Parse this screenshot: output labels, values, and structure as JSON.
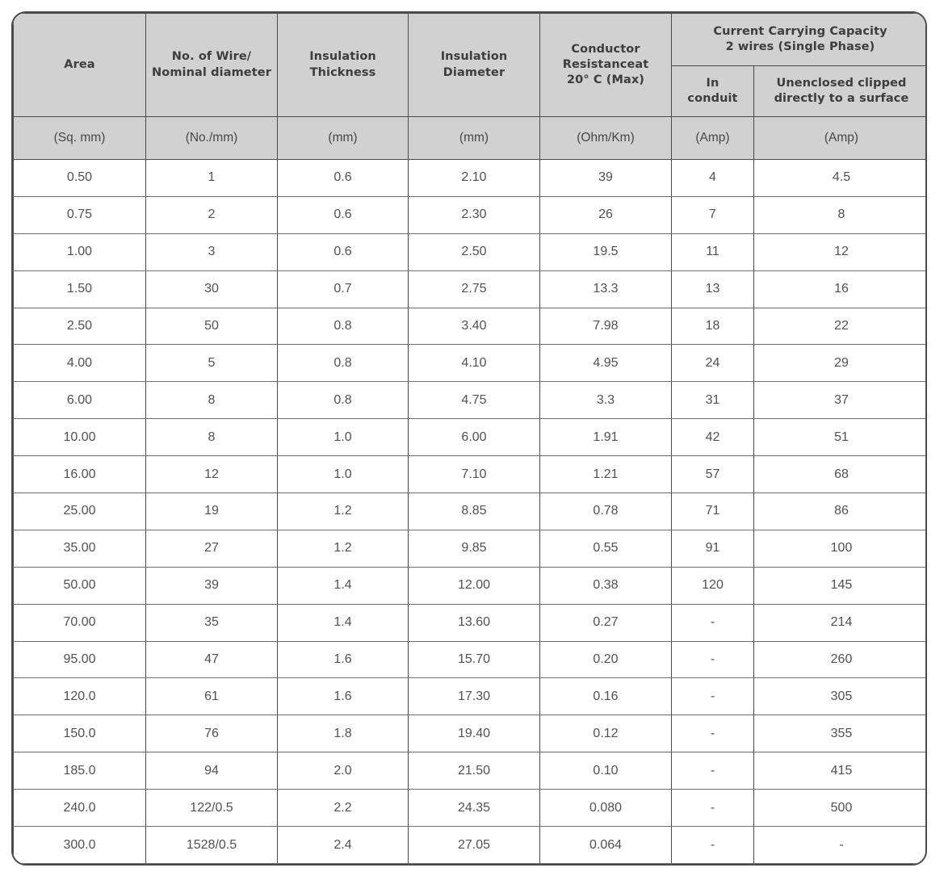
{
  "table": {
    "group_header": "Current Carrying Capacity\n2 wires (Single Phase)",
    "columns": [
      {
        "key": "area",
        "label": "Area",
        "unit": "(Sq. mm)"
      },
      {
        "key": "wires",
        "label": "No. of Wire/\nNominal diameter",
        "unit": "(No./mm)"
      },
      {
        "key": "insulation-thickness",
        "label": "Insulation\nThickness",
        "unit": "(mm)"
      },
      {
        "key": "insulation-diameter",
        "label": "Insulation\nDiameter",
        "unit": "(mm)"
      },
      {
        "key": "resistance",
        "label": "Conductor\nResistanceat\n20° C (Max)",
        "unit": "(Ohm/Km)"
      },
      {
        "key": "in-conduit",
        "label": "In\nconduit",
        "unit": "(Amp)"
      },
      {
        "key": "unenclosed",
        "label": "Unenclosed clipped\ndirectly to a surface",
        "unit": "(Amp)"
      }
    ],
    "rows": [
      [
        "0.50",
        "1",
        "0.6",
        "2.10",
        "39",
        "4",
        "4.5"
      ],
      [
        "0.75",
        "2",
        "0.6",
        "2.30",
        "26",
        "7",
        "8"
      ],
      [
        "1.00",
        "3",
        "0.6",
        "2.50",
        "19.5",
        "11",
        "12"
      ],
      [
        "1.50",
        "30",
        "0.7",
        "2.75",
        "13.3",
        "13",
        "16"
      ],
      [
        "2.50",
        "50",
        "0.8",
        "3.40",
        "7.98",
        "18",
        "22"
      ],
      [
        "4.00",
        "5",
        "0.8",
        "4.10",
        "4.95",
        "24",
        "29"
      ],
      [
        "6.00",
        "8",
        "0.8",
        "4.75",
        "3.3",
        "31",
        "37"
      ],
      [
        "10.00",
        "8",
        "1.0",
        "6.00",
        "1.91",
        "42",
        "51"
      ],
      [
        "16.00",
        "12",
        "1.0",
        "7.10",
        "1.21",
        "57",
        "68"
      ],
      [
        "25.00",
        "19",
        "1.2",
        "8.85",
        "0.78",
        "71",
        "86"
      ],
      [
        "35.00",
        "27",
        "1.2",
        "9.85",
        "0.55",
        "91",
        "100"
      ],
      [
        "50.00",
        "39",
        "1.4",
        "12.00",
        "0.38",
        "120",
        "145"
      ],
      [
        "70.00",
        "35",
        "1.4",
        "13.60",
        "0.27",
        "-",
        "214"
      ],
      [
        "95.00",
        "47",
        "1.6",
        "15.70",
        "0.20",
        "-",
        "260"
      ],
      [
        "120.0",
        "61",
        "1.6",
        "17.30",
        "0.16",
        "-",
        "305"
      ],
      [
        "150.0",
        "76",
        "1.8",
        "19.40",
        "0.12",
        "-",
        "355"
      ],
      [
        "185.0",
        "94",
        "2.0",
        "21.50",
        "0.10",
        "-",
        "415"
      ],
      [
        "240.0",
        "122/0.5",
        "2.2",
        "24.35",
        "0.080",
        "-",
        "500"
      ],
      [
        "300.0",
        "1528/0.5",
        "2.4",
        "27.05",
        "0.064",
        "-",
        "-"
      ]
    ]
  },
  "colors": {
    "header_bg": "#d1d1d1",
    "border_dark": "#4a4a4a",
    "row_line": "#6f6f6f",
    "header_text": "#3d3d3d",
    "data_text": "#515151"
  }
}
